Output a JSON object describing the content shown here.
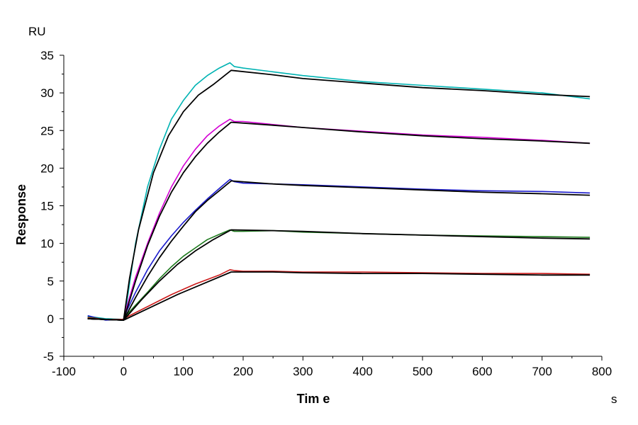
{
  "chart_data": {
    "type": "line",
    "title": "",
    "xlabel": "Tim e",
    "ylabel": "Response",
    "x_unit": "s",
    "y_unit": "RU",
    "xlim": [
      -100,
      800
    ],
    "ylim": [
      -5,
      35
    ],
    "x_ticks": [
      -100,
      0,
      100,
      200,
      300,
      400,
      500,
      600,
      700,
      800
    ],
    "y_ticks": [
      -5,
      0,
      5,
      10,
      15,
      20,
      25,
      30,
      35
    ],
    "grid": false,
    "legend": "none",
    "series": [
      {
        "color": "#00b3b3",
        "x": [
          -60,
          -30,
          0,
          5,
          20,
          40,
          60,
          80,
          100,
          120,
          140,
          160,
          178,
          185,
          200,
          250,
          300,
          400,
          500,
          600,
          700,
          780
        ],
        "values": [
          0.3,
          0.0,
          -0.1,
          2.0,
          10.0,
          17.5,
          22.5,
          26.5,
          29.0,
          31.0,
          32.3,
          33.3,
          34.0,
          33.5,
          33.3,
          32.8,
          32.3,
          31.5,
          31.0,
          30.5,
          30.0,
          29.2
        ]
      },
      {
        "color": "#d400d4",
        "x": [
          -60,
          -30,
          0,
          5,
          20,
          40,
          60,
          80,
          100,
          120,
          140,
          160,
          178,
          185,
          200,
          250,
          300,
          400,
          500,
          600,
          700,
          780
        ],
        "values": [
          0.2,
          -0.1,
          -0.1,
          1.5,
          5.5,
          10.0,
          14.0,
          17.5,
          20.3,
          22.5,
          24.3,
          25.6,
          26.5,
          26.2,
          26.2,
          25.8,
          25.4,
          24.9,
          24.4,
          24.1,
          23.7,
          23.3
        ]
      },
      {
        "color": "#1a1acc",
        "x": [
          -60,
          -30,
          0,
          5,
          20,
          40,
          60,
          80,
          100,
          120,
          140,
          160,
          178,
          185,
          200,
          250,
          300,
          400,
          500,
          600,
          700,
          780
        ],
        "values": [
          0.4,
          -0.2,
          -0.1,
          1.0,
          3.5,
          6.5,
          9.0,
          11.0,
          12.8,
          14.4,
          15.9,
          17.3,
          18.5,
          18.2,
          18.0,
          17.9,
          17.8,
          17.5,
          17.2,
          17.0,
          16.9,
          16.7
        ]
      },
      {
        "color": "#1e7a1e",
        "x": [
          -60,
          -30,
          0,
          5,
          20,
          40,
          60,
          80,
          100,
          120,
          140,
          160,
          178,
          185,
          200,
          250,
          300,
          400,
          500,
          600,
          700,
          780
        ],
        "values": [
          0.2,
          -0.1,
          -0.1,
          0.5,
          1.8,
          3.5,
          5.3,
          6.9,
          8.3,
          9.4,
          10.5,
          11.2,
          11.8,
          11.6,
          11.6,
          11.7,
          11.5,
          11.3,
          11.1,
          11.0,
          10.9,
          10.8
        ]
      },
      {
        "color": "#cc1a1a",
        "x": [
          -60,
          -30,
          0,
          5,
          20,
          40,
          60,
          80,
          100,
          120,
          140,
          160,
          178,
          185,
          200,
          250,
          300,
          400,
          500,
          600,
          700,
          780
        ],
        "values": [
          0.1,
          -0.1,
          -0.1,
          0.2,
          0.8,
          1.6,
          2.4,
          3.2,
          3.9,
          4.6,
          5.2,
          5.8,
          6.5,
          6.4,
          6.3,
          6.3,
          6.2,
          6.2,
          6.1,
          6.0,
          6.0,
          5.9
        ]
      }
    ],
    "fits": [
      {
        "color": "#000000",
        "x": [
          -60,
          0,
          10,
          25,
          50,
          75,
          100,
          125,
          150,
          180,
          250,
          300,
          400,
          500,
          600,
          700,
          780
        ],
        "values": [
          0.0,
          -0.2,
          5.4,
          11.8,
          19.4,
          24.3,
          27.5,
          29.7,
          31.1,
          33.0,
          32.4,
          31.9,
          31.3,
          30.7,
          30.3,
          29.8,
          29.5
        ]
      },
      {
        "color": "#000000",
        "x": [
          -60,
          0,
          20,
          40,
          60,
          80,
          100,
          120,
          140,
          160,
          180,
          250,
          300,
          400,
          500,
          600,
          700,
          780
        ],
        "values": [
          0.0,
          -0.2,
          5.0,
          9.7,
          13.6,
          16.8,
          19.4,
          21.5,
          23.3,
          24.8,
          26.1,
          25.7,
          25.4,
          24.8,
          24.3,
          23.9,
          23.6,
          23.3
        ]
      },
      {
        "color": "#000000",
        "x": [
          -60,
          0,
          20,
          40,
          60,
          80,
          100,
          120,
          140,
          160,
          180,
          250,
          300,
          400,
          500,
          600,
          700,
          780
        ],
        "values": [
          0.0,
          -0.2,
          2.8,
          5.6,
          8.1,
          10.3,
          12.3,
          14.2,
          15.7,
          17.0,
          18.3,
          17.9,
          17.7,
          17.4,
          17.1,
          16.8,
          16.6,
          16.4
        ]
      },
      {
        "color": "#000000",
        "x": [
          -60,
          0,
          30,
          60,
          90,
          120,
          150,
          180,
          250,
          300,
          400,
          500,
          600,
          700,
          780
        ],
        "values": [
          0.0,
          -0.2,
          2.5,
          5.0,
          7.2,
          9.0,
          10.5,
          11.8,
          11.7,
          11.6,
          11.3,
          11.1,
          10.9,
          10.7,
          10.6
        ]
      },
      {
        "color": "#000000",
        "x": [
          -60,
          0,
          45,
          90,
          135,
          180,
          250,
          300,
          400,
          500,
          600,
          700,
          780
        ],
        "values": [
          0.0,
          -0.2,
          1.5,
          3.2,
          4.7,
          6.2,
          6.2,
          6.1,
          6.0,
          6.0,
          5.9,
          5.8,
          5.8
        ]
      }
    ]
  }
}
